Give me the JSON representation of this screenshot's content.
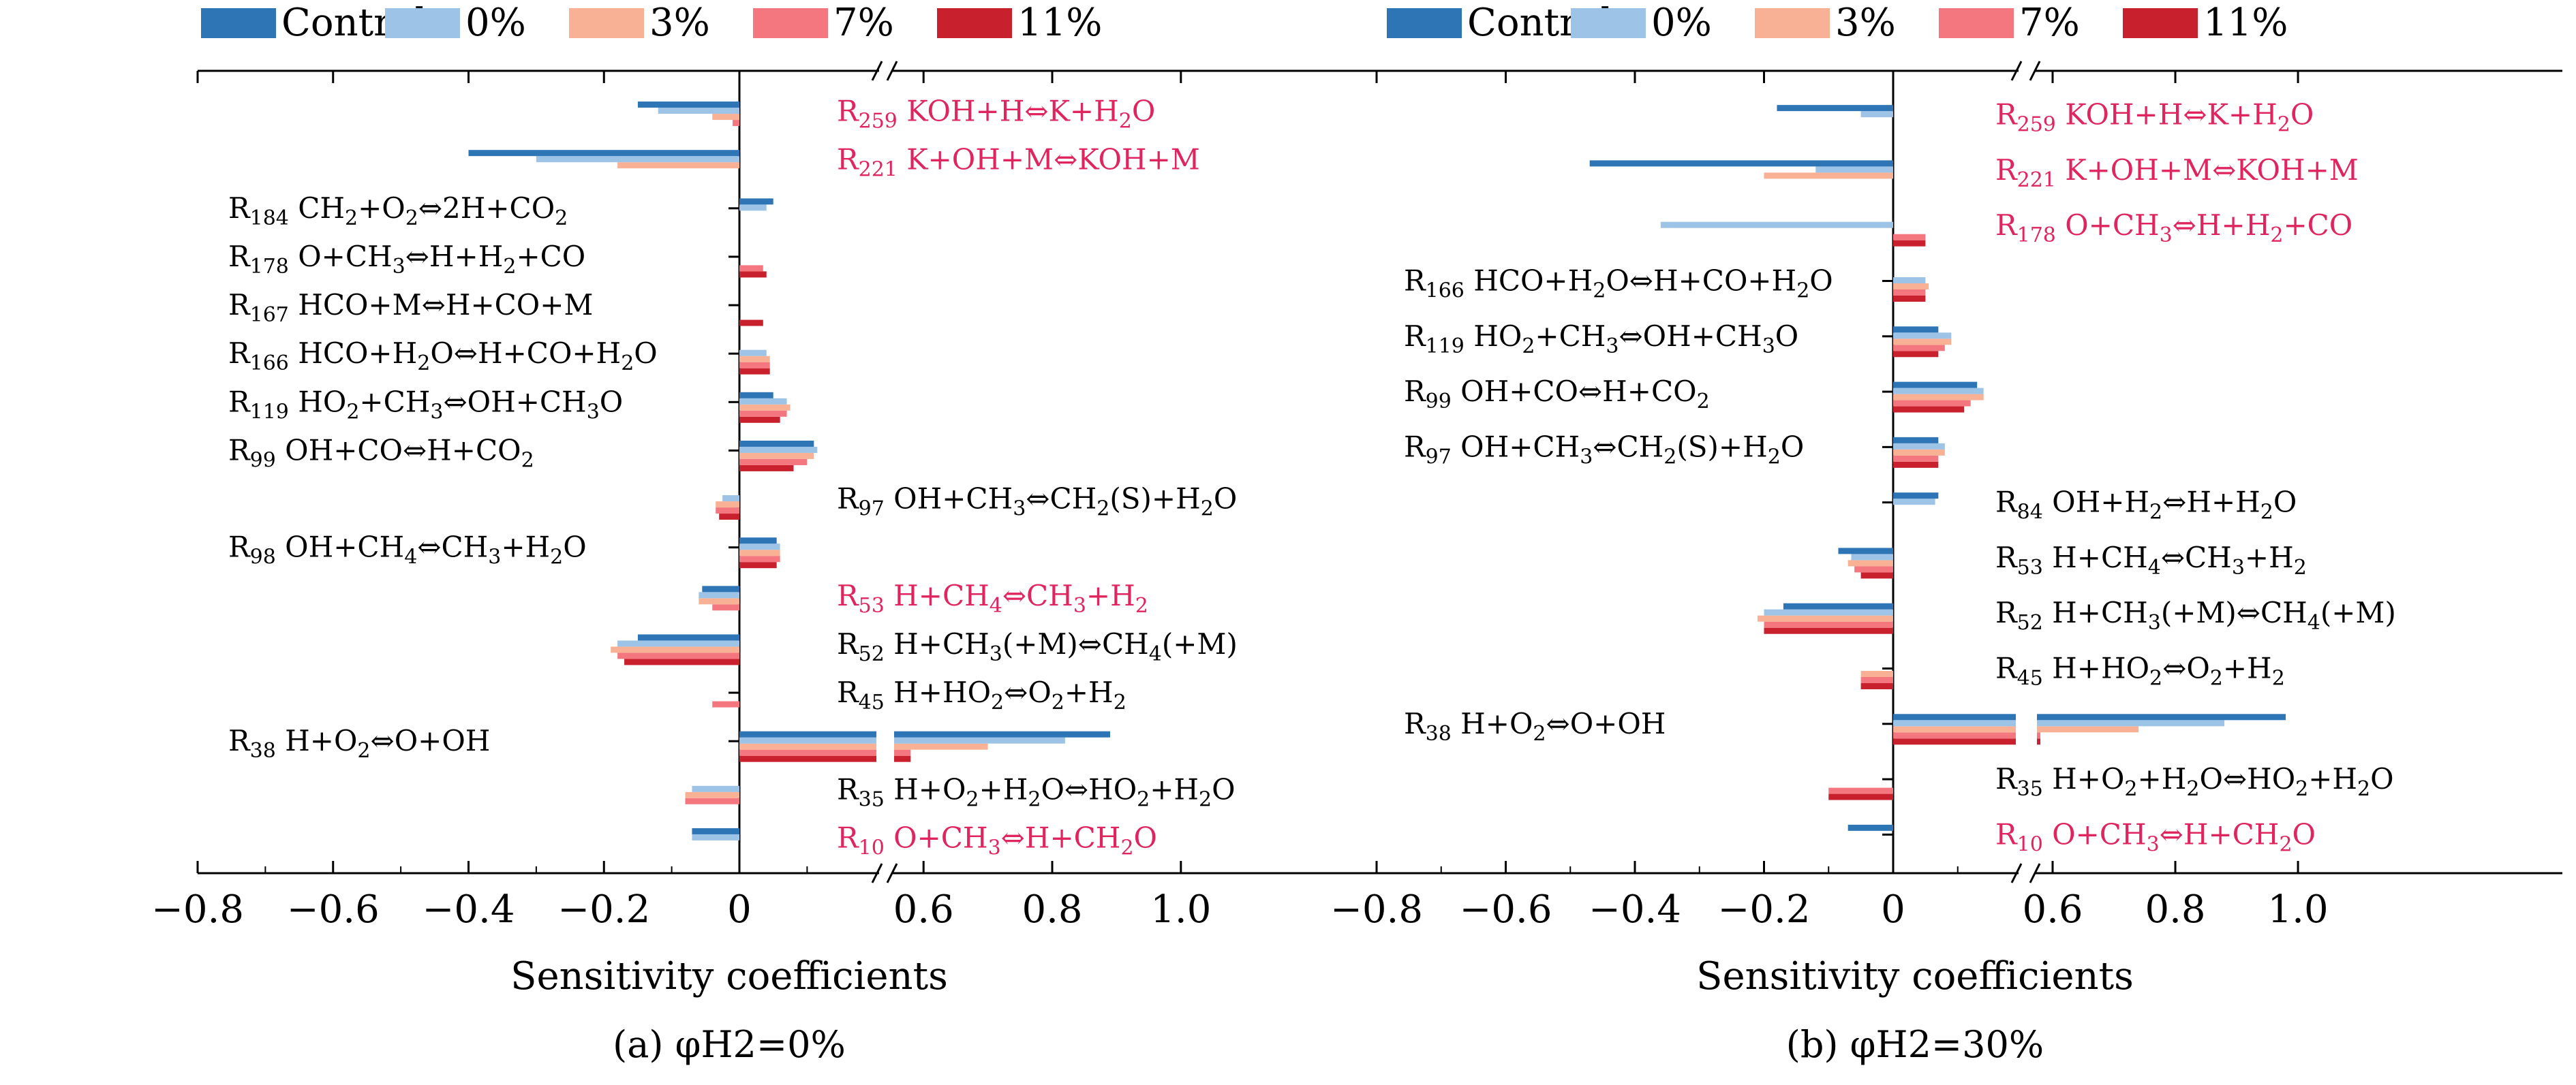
{
  "legend": [
    {
      "name": "Control",
      "color": "#2e75b6"
    },
    {
      "name": "0%",
      "color": "#9dc3e6"
    },
    {
      "name": "3%",
      "color": "#f8b195"
    },
    {
      "name": "7%",
      "color": "#f4777f"
    },
    {
      "name": "11%",
      "color": "#c9202e"
    }
  ],
  "highlight_color": "#e0245e",
  "chart_data": [
    {
      "type": "bar",
      "orientation": "horizontal",
      "panel": "a",
      "caption": "(a) φH2=0%",
      "xlabel": "Sensitivity coefficients",
      "xticks": [
        "−0.8",
        "−0.6",
        "−0.4",
        "−0.2",
        "0",
        "0.6",
        "0.8",
        "1.0"
      ],
      "xlim_left": [
        -0.8,
        0.3
      ],
      "xlim_right": [
        0.5,
        1.1
      ],
      "axis_break": true,
      "series_names": [
        "Control",
        "0%",
        "3%",
        "7%",
        "11%"
      ],
      "reactions": [
        {
          "label": "R259 KOH+H⇔K+H2O",
          "values": [
            0,
            -0.01,
            -0.04,
            -0.12,
            -0.15
          ],
          "side": "right",
          "highlight": true
        },
        {
          "label": "R221 K+OH+M⇔KOH+M",
          "values": [
            0,
            0,
            -0.18,
            -0.3,
            -0.4
          ],
          "side": "right",
          "highlight": true
        },
        {
          "label": "R184 CH2+O2⇔2H+CO2",
          "values": [
            0,
            0,
            0,
            0.04,
            0.05
          ],
          "side": "left",
          "highlight": false
        },
        {
          "label": "R178 O+CH3⇔H+H2+CO",
          "values": [
            0.04,
            0.035,
            0,
            0,
            0
          ],
          "side": "left",
          "highlight": false
        },
        {
          "label": "R167 HCO+M⇔H+CO+M",
          "values": [
            0.035,
            0,
            0,
            0,
            0
          ],
          "side": "left",
          "highlight": false
        },
        {
          "label": "R166 HCO+H2O⇔H+CO+H2O",
          "values": [
            0.045,
            0.045,
            0.045,
            0.04,
            0
          ],
          "side": "left",
          "highlight": false
        },
        {
          "label": "R119 HO2+CH3⇔OH+CH3O",
          "values": [
            0.06,
            0.07,
            0.075,
            0.07,
            0.05
          ],
          "side": "left",
          "highlight": false
        },
        {
          "label": "R99 OH+CO⇔H+CO2",
          "values": [
            0.08,
            0.1,
            0.11,
            0.115,
            0.11
          ],
          "side": "left",
          "highlight": false
        },
        {
          "label": "R97 OH+CH3⇔CH2(S)+H2O",
          "values": [
            -0.03,
            -0.035,
            -0.035,
            -0.025,
            0
          ],
          "side": "right",
          "highlight": false
        },
        {
          "label": "R98 OH+CH4⇔CH3+H2O",
          "values": [
            0.055,
            0.06,
            0.06,
            0.06,
            0.055
          ],
          "side": "left",
          "highlight": false
        },
        {
          "label": "R53 H+CH4⇔CH3+H2",
          "values": [
            0,
            -0.04,
            -0.06,
            -0.06,
            -0.055
          ],
          "side": "right",
          "highlight": true
        },
        {
          "label": "R52 H+CH3(+M)⇔CH4(+M)",
          "values": [
            -0.17,
            -0.18,
            -0.19,
            -0.18,
            -0.15
          ],
          "side": "right",
          "highlight": false
        },
        {
          "label": "R45 H+HO2⇔O2+H2",
          "values": [
            0,
            -0.04,
            0,
            0,
            0
          ],
          "side": "right",
          "highlight": false
        },
        {
          "label": "R38 H+O2⇔O+OH",
          "values": [
            0.58,
            0.58,
            0.7,
            0.82,
            0.89
          ],
          "side": "left",
          "highlight": false
        },
        {
          "label": "R35 H+O2+H2O⇔HO2+H2O",
          "values": [
            0,
            -0.08,
            -0.08,
            -0.07,
            0
          ],
          "side": "right",
          "highlight": false
        },
        {
          "label": "R10 O+CH3⇔H+CH2O",
          "values": [
            0,
            0,
            0,
            -0.07,
            -0.07
          ],
          "side": "right",
          "highlight": true
        }
      ]
    },
    {
      "type": "bar",
      "orientation": "horizontal",
      "panel": "b",
      "caption": "(b) φH2=30%",
      "xlabel": "Sensitivity coefficients",
      "xticks": [
        "−0.8",
        "−0.6",
        "−0.4",
        "−0.2",
        "0",
        "0.6",
        "0.8",
        "1.0"
      ],
      "xlim_left": [
        -0.8,
        0.3
      ],
      "xlim_right": [
        0.5,
        1.1
      ],
      "axis_break": true,
      "series_names": [
        "Control",
        "0%",
        "3%",
        "7%",
        "11%"
      ],
      "reactions": [
        {
          "label": "R259 KOH+H⇔K+H2O",
          "values": [
            0,
            0,
            0,
            -0.05,
            -0.18
          ],
          "side": "right",
          "highlight": true
        },
        {
          "label": "R221 K+OH+M⇔KOH+M",
          "values": [
            0,
            0,
            -0.2,
            -0.12,
            -0.47
          ],
          "side": "right",
          "highlight": true
        },
        {
          "label": "R178 O+CH3⇔H+H2+CO",
          "values": [
            0.05,
            0.05,
            0,
            -0.36,
            0
          ],
          "side": "right",
          "highlight": true
        },
        {
          "label": "R166 HCO+H2O⇔H+CO+H2O",
          "values": [
            0.05,
            0.05,
            0.055,
            0.05,
            0
          ],
          "side": "left",
          "highlight": false
        },
        {
          "label": "R119 HO2+CH3⇔OH+CH3O",
          "values": [
            0.07,
            0.08,
            0.09,
            0.09,
            0.07
          ],
          "side": "left",
          "highlight": false
        },
        {
          "label": "R99 OH+CO⇔H+CO2",
          "values": [
            0.11,
            0.12,
            0.14,
            0.14,
            0.13
          ],
          "side": "left",
          "highlight": false
        },
        {
          "label": "R97 OH+CH3⇔CH2(S)+H2O",
          "values": [
            0.07,
            0.07,
            0.08,
            0.08,
            0.07
          ],
          "side": "left",
          "highlight": false
        },
        {
          "label": "R84 OH+H2⇔H+H2O",
          "values": [
            0,
            0,
            0,
            0.065,
            0.07
          ],
          "side": "right",
          "highlight": false
        },
        {
          "label": "R53 H+CH4⇔CH3+H2",
          "values": [
            -0.05,
            -0.06,
            -0.07,
            -0.065,
            -0.085
          ],
          "side": "right",
          "highlight": false
        },
        {
          "label": "R52 H+CH3(+M)⇔CH4(+M)",
          "values": [
            -0.2,
            -0.2,
            -0.21,
            -0.2,
            -0.17
          ],
          "side": "right",
          "highlight": false
        },
        {
          "label": "R45 H+HO2⇔O2+H2",
          "values": [
            -0.05,
            -0.05,
            -0.05,
            0,
            0
          ],
          "side": "right",
          "highlight": false
        },
        {
          "label": "R38 H+O2⇔O+OH",
          "values": [
            0.58,
            0.58,
            0.74,
            0.88,
            0.98
          ],
          "side": "left",
          "highlight": false
        },
        {
          "label": "R35 H+O2+H2O⇔HO2+H2O",
          "values": [
            -0.1,
            -0.1,
            0,
            0,
            0
          ],
          "side": "right",
          "highlight": false
        },
        {
          "label": "R10 O+CH3⇔H+CH2O",
          "values": [
            0,
            0,
            0,
            0,
            -0.07
          ],
          "side": "right",
          "highlight": true
        }
      ]
    }
  ]
}
